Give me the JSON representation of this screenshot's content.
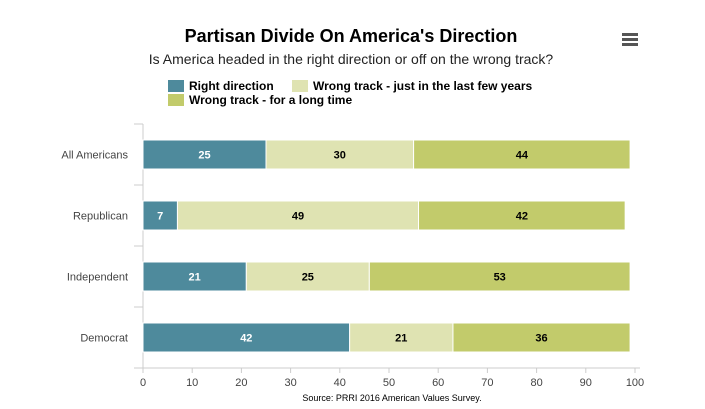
{
  "chart_data": {
    "type": "bar",
    "orientation": "horizontal",
    "stacked": true,
    "title": "Partisan Divide On America's Direction",
    "subtitle": "Is America headed in the right direction or off on the wrong track?",
    "categories": [
      "All Americans",
      "Republican",
      "Independent",
      "Democrat"
    ],
    "series": [
      {
        "name": "Right direction",
        "color": "#4e8a9c",
        "label_color": "#ffffff",
        "values": [
          25,
          7,
          21,
          42
        ]
      },
      {
        "name": "Wrong track - just in the last few years",
        "color": "#dfe3b2",
        "label_color": "#000000",
        "values": [
          30,
          49,
          25,
          21
        ]
      },
      {
        "name": "Wrong track - for a long time",
        "color": "#c2cb6b",
        "label_color": "#000000",
        "values": [
          44,
          42,
          53,
          36
        ]
      }
    ],
    "xlim": [
      0,
      100
    ],
    "xticks": [
      0,
      10,
      20,
      30,
      40,
      50,
      60,
      70,
      80,
      90,
      100
    ],
    "grid": false,
    "legend_position": "top",
    "source": "Source: PRRI 2016 American Values Survey."
  },
  "menu": {
    "icon": "hamburger-menu-icon"
  }
}
